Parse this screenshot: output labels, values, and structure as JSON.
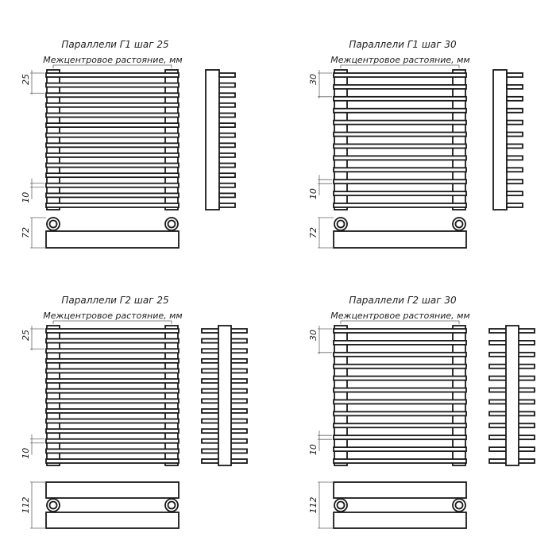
{
  "panels": [
    {
      "title": "Параллели Г1 шаг 25",
      "subtitle": "Межцентровое растояние, мм",
      "pitch_label": "25",
      "gap_label": "10",
      "depth_label": "72",
      "type": "G1",
      "bars": 14
    },
    {
      "title": "Параллели Г1 шаг 30",
      "subtitle": "Межцентровое растояние, мм",
      "pitch_label": "30",
      "gap_label": "10",
      "depth_label": "72",
      "type": "G1",
      "bars": 12
    },
    {
      "title": "Параллели Г2 шаг 25",
      "subtitle": "Межцентровое растояние, мм",
      "pitch_label": "25",
      "gap_label": "10",
      "depth_label": "112",
      "type": "G2",
      "bars": 14
    },
    {
      "title": "Параллели Г2 шаг 30",
      "subtitle": "Межцентровое растояние, мм",
      "pitch_label": "30",
      "gap_label": "10",
      "depth_label": "112",
      "type": "G2",
      "bars": 12
    }
  ]
}
